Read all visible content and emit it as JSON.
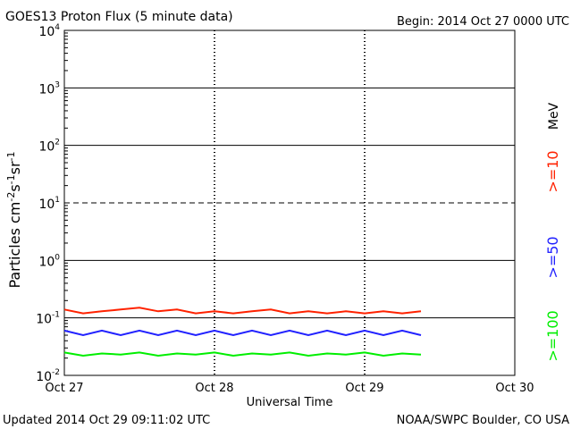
{
  "header": {
    "title": "GOES13 Proton Flux (5 minute data)",
    "begin": "Begin: 2014 Oct 27 0000 UTC"
  },
  "footer": {
    "updated": "Updated 2014 Oct 29 09:11:02 UTC",
    "credit": "NOAA/SWPC Boulder, CO USA"
  },
  "legend": {
    "unit": "MeV",
    "colors": {
      "ge10": "#ff2200",
      "ge50": "#2222ff",
      "ge100": "#00ee00",
      "threshold": "#000000"
    }
  },
  "chart_data": {
    "type": "line",
    "title": "GOES13 Proton Flux (5 minute data)",
    "xlabel": "Universal Time",
    "ylabel": "Particles cm-2s-1sr-1",
    "y_scale": "log",
    "ylim": [
      0.01,
      10000
    ],
    "xlim": [
      "2014-10-27 00:00",
      "2014-10-30 00:00"
    ],
    "x_ticks": [
      "Oct 27",
      "Oct 28",
      "Oct 29",
      "Oct 30"
    ],
    "y_ticks": [
      {
        "base": "10",
        "exp": "-2",
        "value": 0.01
      },
      {
        "base": "10",
        "exp": "-1",
        "value": 0.1
      },
      {
        "base": "10",
        "exp": "0",
        "value": 1
      },
      {
        "base": "10",
        "exp": "1",
        "value": 10
      },
      {
        "base": "10",
        "exp": "2",
        "value": 100
      },
      {
        "base": "10",
        "exp": "3",
        "value": 1000
      },
      {
        "base": "10",
        "exp": "4",
        "value": 10000
      }
    ],
    "threshold": {
      "value": 10,
      "style": "dashed"
    },
    "series": [
      {
        "name": ">=10",
        "color": "#ff2200",
        "x": [
          "Oct 27 00:00",
          "Oct 27 03:00",
          "Oct 27 06:00",
          "Oct 27 09:00",
          "Oct 27 12:00",
          "Oct 27 15:00",
          "Oct 27 18:00",
          "Oct 27 21:00",
          "Oct 28 00:00",
          "Oct 28 03:00",
          "Oct 28 06:00",
          "Oct 28 09:00",
          "Oct 28 12:00",
          "Oct 28 15:00",
          "Oct 28 18:00",
          "Oct 28 21:00",
          "Oct 29 00:00",
          "Oct 29 03:00",
          "Oct 29 06:00",
          "Oct 29 09:00"
        ],
        "values": [
          0.14,
          0.12,
          0.13,
          0.14,
          0.15,
          0.13,
          0.14,
          0.12,
          0.13,
          0.12,
          0.13,
          0.14,
          0.12,
          0.13,
          0.12,
          0.13,
          0.12,
          0.13,
          0.12,
          0.13
        ]
      },
      {
        "name": ">=50",
        "color": "#2222ff",
        "x": [
          "Oct 27 00:00",
          "Oct 27 03:00",
          "Oct 27 06:00",
          "Oct 27 09:00",
          "Oct 27 12:00",
          "Oct 27 15:00",
          "Oct 27 18:00",
          "Oct 27 21:00",
          "Oct 28 00:00",
          "Oct 28 03:00",
          "Oct 28 06:00",
          "Oct 28 09:00",
          "Oct 28 12:00",
          "Oct 28 15:00",
          "Oct 28 18:00",
          "Oct 28 21:00",
          "Oct 29 00:00",
          "Oct 29 03:00",
          "Oct 29 06:00",
          "Oct 29 09:00"
        ],
        "values": [
          0.06,
          0.05,
          0.06,
          0.05,
          0.06,
          0.05,
          0.06,
          0.05,
          0.06,
          0.05,
          0.06,
          0.05,
          0.06,
          0.05,
          0.06,
          0.05,
          0.06,
          0.05,
          0.06,
          0.05
        ]
      },
      {
        "name": ">=100",
        "color": "#00ee00",
        "x": [
          "Oct 27 00:00",
          "Oct 27 03:00",
          "Oct 27 06:00",
          "Oct 27 09:00",
          "Oct 27 12:00",
          "Oct 27 15:00",
          "Oct 27 18:00",
          "Oct 27 21:00",
          "Oct 28 00:00",
          "Oct 28 03:00",
          "Oct 28 06:00",
          "Oct 28 09:00",
          "Oct 28 12:00",
          "Oct 28 15:00",
          "Oct 28 18:00",
          "Oct 28 21:00",
          "Oct 29 00:00",
          "Oct 29 03:00",
          "Oct 29 06:00",
          "Oct 29 09:00"
        ],
        "values": [
          0.025,
          0.022,
          0.024,
          0.023,
          0.025,
          0.022,
          0.024,
          0.023,
          0.025,
          0.022,
          0.024,
          0.023,
          0.025,
          0.022,
          0.024,
          0.023,
          0.025,
          0.022,
          0.024,
          0.023
        ]
      }
    ]
  }
}
